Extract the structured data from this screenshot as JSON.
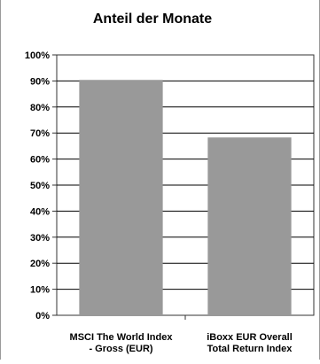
{
  "chart_data": {
    "type": "bar",
    "title": "Anteil der Monate",
    "categories": [
      [
        "MSCI The World Index",
        "- Gross (EUR)"
      ],
      [
        "iBoxx EUR Overall",
        "Total Return Index"
      ]
    ],
    "values": [
      90.4,
      68.3
    ],
    "ylim": [
      0,
      100
    ],
    "y_ticks": [
      "0%",
      "10%",
      "20%",
      "30%",
      "40%",
      "50%",
      "60%",
      "70%",
      "80%",
      "90%",
      "100%"
    ],
    "grid": true,
    "legend": "none",
    "colors": {
      "bar": "#999999",
      "plot_border": "#333333",
      "grid": "#000000",
      "text": "#000000"
    }
  }
}
